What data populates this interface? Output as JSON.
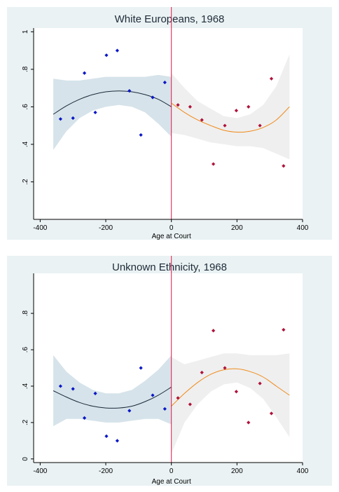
{
  "chart_data": [
    {
      "type": "scatter",
      "title": "White Europeans, 1968",
      "xlabel": "Age at Court",
      "ylabel": "",
      "xlim": [
        -420,
        400
      ],
      "ylim": [
        0,
        1.02
      ],
      "xticks": [
        -400,
        -200,
        0,
        200,
        400
      ],
      "xtick_labels": [
        "-400",
        "-200",
        "0",
        "200",
        "400"
      ],
      "yticks": [
        0.2,
        0.4,
        0.6,
        0.8,
        1.0
      ],
      "ytick_labels": [
        ".2",
        ".4",
        ".6",
        ".8",
        "1"
      ],
      "cutoff": 0,
      "grid": false,
      "colors": {
        "left_points": "#0a17c6",
        "right_points": "#b0123a",
        "left_fit": "#1a2a3a",
        "right_fit": "#f08a1a",
        "left_band": "#d6e3ea",
        "right_band": "#efefef",
        "cutoff": "#e8174a"
      },
      "left_points": {
        "x": [
          -338,
          -300,
          -265,
          -232,
          -198,
          -165,
          -128,
          -93,
          -57,
          -20
        ],
        "y": [
          0.535,
          0.54,
          0.78,
          0.57,
          0.875,
          0.9,
          0.685,
          0.45,
          0.65,
          0.73
        ]
      },
      "right_points": {
        "x": [
          20,
          57,
          93,
          128,
          163,
          198,
          235,
          270,
          305,
          342
        ],
        "y": [
          0.61,
          0.6,
          0.53,
          0.295,
          0.5,
          0.58,
          0.6,
          0.5,
          0.75,
          0.285
        ]
      },
      "left_fit": {
        "x": [
          -360,
          -320,
          -280,
          -240,
          -200,
          -160,
          -120,
          -80,
          -40,
          0
        ],
        "y": [
          0.56,
          0.605,
          0.64,
          0.665,
          0.68,
          0.685,
          0.68,
          0.665,
          0.64,
          0.6
        ]
      },
      "left_ci": {
        "x": [
          -360,
          -320,
          -280,
          -240,
          -200,
          -160,
          -120,
          -80,
          -40,
          0
        ],
        "lower": [
          0.37,
          0.47,
          0.54,
          0.58,
          0.6,
          0.61,
          0.6,
          0.57,
          0.51,
          0.44
        ],
        "upper": [
          0.75,
          0.74,
          0.74,
          0.75,
          0.76,
          0.76,
          0.76,
          0.76,
          0.77,
          0.76
        ]
      },
      "right_fit": {
        "x": [
          0,
          40,
          80,
          120,
          160,
          200,
          240,
          280,
          320,
          360
        ],
        "y": [
          0.62,
          0.57,
          0.53,
          0.5,
          0.475,
          0.465,
          0.47,
          0.49,
          0.53,
          0.6
        ]
      },
      "right_ci": {
        "x": [
          0,
          40,
          80,
          120,
          160,
          200,
          240,
          280,
          320,
          360
        ],
        "lower": [
          0.46,
          0.45,
          0.43,
          0.41,
          0.4,
          0.39,
          0.39,
          0.38,
          0.35,
          0.32
        ],
        "upper": [
          0.78,
          0.7,
          0.63,
          0.59,
          0.55,
          0.54,
          0.56,
          0.61,
          0.71,
          0.88
        ]
      }
    },
    {
      "type": "scatter",
      "title": "Unknown Ethnicity, 1968",
      "xlabel": "Age at Court",
      "ylabel": "",
      "xlim": [
        -420,
        400
      ],
      "ylim": [
        -0.02,
        1.02
      ],
      "xticks": [
        -400,
        -200,
        0,
        200,
        400
      ],
      "xtick_labels": [
        "-400",
        "-200",
        "0",
        "200",
        "400"
      ],
      "yticks": [
        0,
        0.2,
        0.4,
        0.6,
        0.8
      ],
      "ytick_labels": [
        "0",
        ".2",
        ".4",
        ".6",
        ".8"
      ],
      "cutoff": 0,
      "grid": false,
      "colors": {
        "left_points": "#0a17c6",
        "right_points": "#b0123a",
        "left_fit": "#1a2a3a",
        "right_fit": "#f08a1a",
        "left_band": "#d6e3ea",
        "right_band": "#efefef",
        "cutoff": "#e8174a"
      },
      "left_points": {
        "x": [
          -338,
          -300,
          -265,
          -232,
          -198,
          -165,
          -128,
          -93,
          -57,
          -20
        ],
        "y": [
          0.4,
          0.385,
          0.225,
          0.36,
          0.125,
          0.1,
          0.265,
          0.5,
          0.35,
          0.275
        ]
      },
      "right_points": {
        "x": [
          20,
          57,
          93,
          128,
          163,
          198,
          235,
          270,
          305,
          342
        ],
        "y": [
          0.335,
          0.3,
          0.475,
          0.705,
          0.5,
          0.37,
          0.2,
          0.415,
          0.25,
          0.71
        ]
      },
      "left_fit": {
        "x": [
          -360,
          -320,
          -280,
          -240,
          -200,
          -160,
          -120,
          -80,
          -40,
          0
        ],
        "y": [
          0.375,
          0.34,
          0.31,
          0.29,
          0.28,
          0.28,
          0.29,
          0.315,
          0.35,
          0.395
        ]
      },
      "left_ci": {
        "x": [
          -360,
          -320,
          -280,
          -240,
          -200,
          -160,
          -120,
          -80,
          -40,
          0
        ],
        "lower": [
          0.18,
          0.22,
          0.22,
          0.21,
          0.2,
          0.2,
          0.21,
          0.22,
          0.22,
          0.19
        ],
        "upper": [
          0.57,
          0.48,
          0.42,
          0.38,
          0.36,
          0.36,
          0.38,
          0.43,
          0.49,
          0.57
        ]
      },
      "right_fit": {
        "x": [
          0,
          40,
          80,
          120,
          160,
          200,
          240,
          280,
          320,
          360
        ],
        "y": [
          0.29,
          0.36,
          0.42,
          0.465,
          0.49,
          0.495,
          0.48,
          0.45,
          0.4,
          0.35
        ]
      },
      "right_ci": {
        "x": [
          0,
          40,
          80,
          120,
          160,
          200,
          240,
          280,
          320,
          360
        ],
        "lower": [
          0.03,
          0.2,
          0.3,
          0.37,
          0.41,
          0.42,
          0.39,
          0.33,
          0.23,
          0.12
        ],
        "upper": [
          0.56,
          0.52,
          0.54,
          0.56,
          0.58,
          0.58,
          0.57,
          0.57,
          0.57,
          0.58
        ]
      }
    }
  ]
}
